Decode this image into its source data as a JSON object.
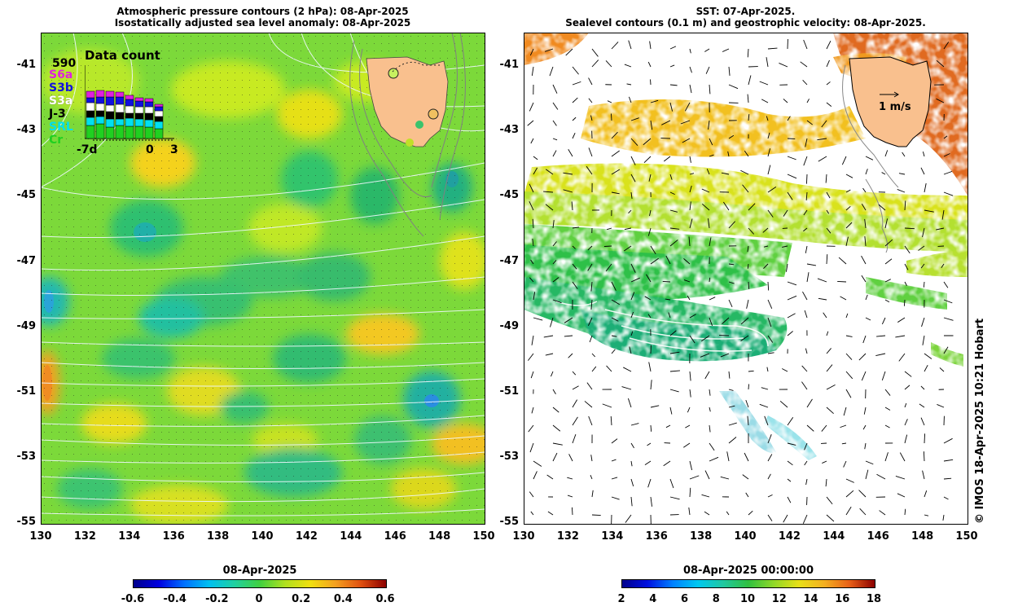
{
  "left_panel": {
    "title_line1": "Atmospheric pressure contours (2 hPa): 08-Apr-2025",
    "title_line2": "Isostatically adjusted sea level anomaly: 08-Apr-2025",
    "inset": {
      "title": "Data count",
      "max_count": "590",
      "satellites": [
        {
          "label": "S6a",
          "color": "#e020e0"
        },
        {
          "label": "S3b",
          "color": "#1010e0"
        },
        {
          "label": "S3a",
          "color": "#ffffff"
        },
        {
          "label": "J-3",
          "color": "#000000"
        },
        {
          "label": "SRL",
          "color": "#00e0f0"
        },
        {
          "label": "Cr",
          "color": "#20d020"
        }
      ],
      "x_labels": {
        "start": "-7d",
        "mid": "0",
        "end": "3"
      }
    },
    "colorbar": {
      "title": "08-Apr-2025",
      "ticks": [
        "-0.6",
        "-0.4",
        "-0.2",
        "0",
        "0.2",
        "0.4",
        "0.6"
      ]
    }
  },
  "right_panel": {
    "title_line1": "SST: 07-Apr-2025.",
    "title_line2": "Sealevel contours (0.1 m) and geostrophic velocity: 08-Apr-2025.",
    "velocity_scale_label": "1 m/s",
    "colorbar": {
      "title": "08-Apr-2025 00:00:00",
      "ticks": [
        "2",
        "4",
        "6",
        "8",
        "10",
        "12",
        "14",
        "16",
        "18"
      ]
    }
  },
  "axes": {
    "lat_ticks": [
      "-41",
      "-43",
      "-45",
      "-47",
      "-49",
      "-51",
      "-53",
      "-55"
    ],
    "lon_ticks": [
      "130",
      "132",
      "134",
      "136",
      "138",
      "140",
      "142",
      "144",
      "146",
      "148",
      "150"
    ]
  },
  "credit": "© IMOS 18-Apr-2025 10:21 Hobart",
  "colors": {
    "land": "#f9c08e",
    "sla_bg": "#7ddc3c",
    "sst_cold": "#00008c",
    "sst_warm": "#8c0000"
  }
}
